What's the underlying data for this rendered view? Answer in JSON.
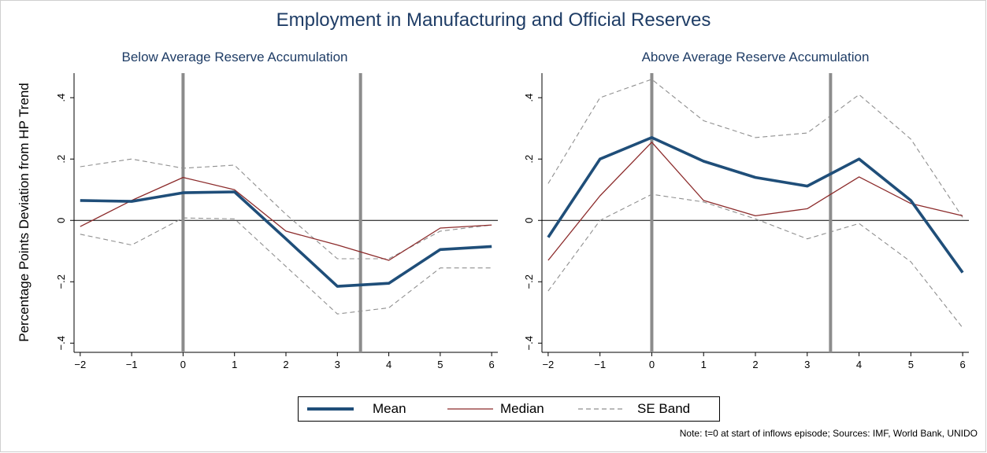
{
  "title": "Employment in Manufacturing and Official Reserves",
  "ylabel": "Percentage Points Deviation from HP Trend",
  "note": "Note: t=0 at start of inflows episode; Sources: IMF, World Bank, UNIDO",
  "legend": {
    "mean": "Mean",
    "median": "Median",
    "se_band": "SE Band"
  },
  "colors": {
    "mean": "#1f4e79",
    "median": "#8c2b2b",
    "se_band": "#8f8f8f",
    "vline": "#8c8c8c",
    "title": "#1f3d66"
  },
  "chart_data": [
    {
      "type": "line",
      "title": "Below Average Reserve Accumulation",
      "x": [
        -2,
        -1,
        0,
        1,
        2,
        3,
        4,
        5,
        6
      ],
      "xticks": [
        "−2",
        "−1",
        "0",
        "1",
        "2",
        "3",
        "4",
        "5",
        "6"
      ],
      "yticks": [
        ".4",
        ".2",
        "0",
        "−.2",
        "−.4"
      ],
      "ytick_values": [
        0.4,
        0.2,
        0,
        -0.2,
        -0.4
      ],
      "ylim": [
        -0.43,
        0.48
      ],
      "xlim": [
        -2.12,
        6.12
      ],
      "vlines": [
        0,
        3.45
      ],
      "hline": 0,
      "series": [
        {
          "name": "Mean",
          "key": "mean",
          "values": [
            0.065,
            0.062,
            0.09,
            0.093,
            -0.06,
            -0.215,
            -0.205,
            -0.095,
            -0.085
          ]
        },
        {
          "name": "Median",
          "key": "median",
          "values": [
            -0.02,
            0.065,
            0.14,
            0.1,
            -0.035,
            -0.08,
            -0.13,
            -0.025,
            -0.015
          ]
        },
        {
          "name": "SE Band",
          "key": "se_upper",
          "values": [
            0.175,
            0.2,
            0.17,
            0.18,
            0.02,
            -0.125,
            -0.125,
            -0.035,
            -0.015
          ]
        },
        {
          "name": "SE Band",
          "key": "se_lower",
          "values": [
            -0.045,
            -0.08,
            0.008,
            0.005,
            -0.15,
            -0.305,
            -0.285,
            -0.155,
            -0.155
          ]
        }
      ]
    },
    {
      "type": "line",
      "title": "Above Average Reserve Accumulation",
      "x": [
        -2,
        -1,
        0,
        1,
        2,
        3,
        4,
        5,
        6
      ],
      "xticks": [
        "−2",
        "−1",
        "0",
        "1",
        "2",
        "3",
        "4",
        "5",
        "6"
      ],
      "yticks": [
        ".4",
        ".2",
        "0",
        "−.2",
        "−.4"
      ],
      "ytick_values": [
        0.4,
        0.2,
        0,
        -0.2,
        -0.4
      ],
      "ylim": [
        -0.43,
        0.48
      ],
      "xlim": [
        -2.12,
        6.12
      ],
      "vlines": [
        0,
        3.45
      ],
      "hline": 0,
      "series": [
        {
          "name": "Mean",
          "key": "mean",
          "values": [
            -0.055,
            0.2,
            0.27,
            0.193,
            0.14,
            0.112,
            0.2,
            0.065,
            -0.17
          ]
        },
        {
          "name": "Median",
          "key": "median",
          "values": [
            -0.13,
            0.08,
            0.255,
            0.065,
            0.015,
            0.038,
            0.142,
            0.055,
            0.015
          ]
        },
        {
          "name": "SE Band",
          "key": "se_upper",
          "values": [
            0.12,
            0.4,
            0.46,
            0.325,
            0.27,
            0.285,
            0.41,
            0.265,
            0.01
          ]
        },
        {
          "name": "SE Band",
          "key": "se_lower",
          "values": [
            -0.23,
            0.0,
            0.085,
            0.06,
            0.005,
            -0.06,
            -0.01,
            -0.135,
            -0.35
          ]
        }
      ]
    }
  ]
}
